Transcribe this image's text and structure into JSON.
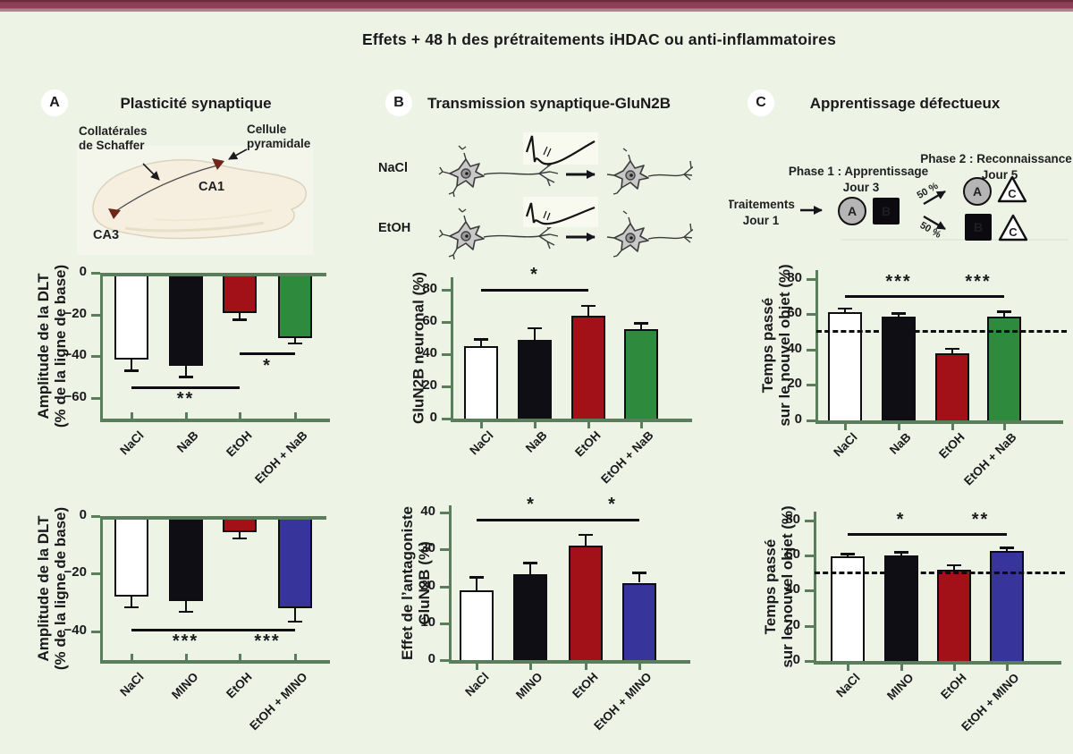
{
  "figure": {
    "title": "Effets + 48 h des prétraitements iHDAC ou anti-inflammatoires",
    "accent_bar_color": "#8d4156",
    "background_color": "#edf3e5",
    "axis_color": "#5a7e5b",
    "ink_color": "#0d0d12"
  },
  "panel_a": {
    "badge": "A",
    "title": "Plasticité synaptique",
    "image": {
      "label_schaffer_1": "Collatérales",
      "label_schaffer_2": "de Schaffer",
      "label_cell_1": "Cellule",
      "label_cell_2": "pyramidale",
      "label_ca1": "CA1",
      "label_ca3": "CA3"
    }
  },
  "panel_b": {
    "badge": "B",
    "title": "Transmission synaptique-GluN2B",
    "row1_label": "NaCl",
    "row2_label": "EtOH"
  },
  "panel_c": {
    "badge": "C",
    "title": "Apprentissage défectueux",
    "diagram": {
      "treatments_1": "Traitements",
      "treatments_2": "Jour 1",
      "phase1_1": "Phase 1 : Apprentissage",
      "phase1_2": "Jour 3",
      "phase2_1": "Phase 2 : Reconnaissance",
      "phase2_2": "Jour 5",
      "pct_top": "50 %",
      "pct_bottom": "50 %",
      "obj_a": "A",
      "obj_b": "B",
      "obj_c": "C"
    }
  },
  "chart_data": [
    {
      "id": "a_top",
      "type": "bar",
      "direction": "down",
      "ylabel": [
        "Amplitude de la DLT",
        "(% de la ligne de base)"
      ],
      "categories": [
        "NaCl",
        "NaB",
        "EtOH",
        "EtOH + NaB"
      ],
      "values": [
        -40,
        -43,
        -18,
        -30
      ],
      "errors": [
        6,
        6,
        3.5,
        3
      ],
      "colors": [
        "#ffffff",
        "#0e0e14",
        "#a31118",
        "#2e8b3e"
      ],
      "ylim": [
        0,
        -70
      ],
      "yticks": [
        0,
        -20,
        -40,
        -60
      ],
      "significance": [
        {
          "from": 0,
          "to": 2,
          "y": -55,
          "label": "**"
        },
        {
          "from": 2,
          "to": 3,
          "y": -39,
          "label": "*"
        }
      ]
    },
    {
      "id": "a_bottom",
      "type": "bar",
      "direction": "down",
      "ylabel": [
        "Amplitude de la DLT",
        "(% de la ligne de base)"
      ],
      "categories": [
        "NaCl",
        "MINO",
        "EtOH",
        "EtOH + MINO"
      ],
      "values": [
        -27,
        -28.5,
        -4.5,
        -31
      ],
      "errors": [
        4,
        4,
        2.5,
        5
      ],
      "colors": [
        "#ffffff",
        "#0e0e14",
        "#a31118",
        "#37349b"
      ],
      "ylim": [
        0,
        -50
      ],
      "yticks": [
        0,
        -20,
        -40
      ],
      "significance": [
        {
          "from": 0,
          "to": 2,
          "y": -39.5,
          "label": "***"
        },
        {
          "from": 2,
          "to": 3,
          "y": -39.5,
          "label": "***"
        }
      ]
    },
    {
      "id": "b_top",
      "type": "bar",
      "direction": "up",
      "ylabel": [
        "GluN2B neuronal (%)"
      ],
      "categories": [
        "NaCl",
        "NaB",
        "EtOH",
        "EtOH + NaB"
      ],
      "values": [
        45,
        49,
        64,
        55.5
      ],
      "errors": [
        5,
        8,
        7,
        4.5
      ],
      "colors": [
        "#ffffff",
        "#0e0e14",
        "#a31118",
        "#2e8b3e"
      ],
      "ylim": [
        0,
        88
      ],
      "yticks": [
        0,
        20,
        40,
        60,
        80
      ],
      "significance": [
        {
          "from": 0,
          "to": 2,
          "y": 80,
          "label": "*"
        }
      ]
    },
    {
      "id": "b_bottom",
      "type": "bar",
      "direction": "up",
      "ylabel": [
        "Effet de l’antagoniste",
        "GluN2B (%)"
      ],
      "categories": [
        "NaCl",
        "MINO",
        "EtOH",
        "EtOH + MINO"
      ],
      "values": [
        19,
        23.3,
        31,
        21
      ],
      "errors": [
        3.8,
        3.4,
        3.3,
        3
      ],
      "colors": [
        "#ffffff",
        "#0e0e14",
        "#a31118",
        "#37349b"
      ],
      "ylim": [
        0,
        42
      ],
      "yticks": [
        0,
        10,
        20,
        30,
        40
      ],
      "significance": [
        {
          "from": 0,
          "to": 2,
          "y": 38,
          "label": "*"
        },
        {
          "from": 2,
          "to": 3,
          "y": 38,
          "label": "*"
        }
      ]
    },
    {
      "id": "c_top",
      "type": "bar",
      "direction": "up",
      "ylabel": [
        "Temps passé",
        "sur le nouvel objet (%)"
      ],
      "categories": [
        "NaCl",
        "NaB",
        "EtOH",
        "EtOH + NaB"
      ],
      "values": [
        61,
        58.5,
        38,
        58.5
      ],
      "errors": [
        3,
        2.5,
        3,
        3.5
      ],
      "colors": [
        "#ffffff",
        "#0e0e14",
        "#a31118",
        "#2e8b3e"
      ],
      "ylim": [
        0,
        85
      ],
      "yticks": [
        0,
        20,
        40,
        60,
        80
      ],
      "dashed_line": 50,
      "significance": [
        {
          "from": 0,
          "to": 2,
          "y": 70,
          "label": "***"
        },
        {
          "from": 2,
          "to": 3,
          "y": 70,
          "label": "***"
        }
      ]
    },
    {
      "id": "c_bottom",
      "type": "bar",
      "direction": "up",
      "ylabel": [
        "Temps passé",
        "sur le nouvel objet (%)"
      ],
      "categories": [
        "NaCl",
        "MINO",
        "EtOH",
        "EtOH + MINO"
      ],
      "values": [
        59.5,
        60,
        52,
        62.5
      ],
      "errors": [
        2,
        2.5,
        3,
        2.5
      ],
      "colors": [
        "#ffffff",
        "#0e0e14",
        "#a31118",
        "#37349b"
      ],
      "ylim": [
        0,
        85
      ],
      "yticks": [
        0,
        20,
        40,
        60,
        80
      ],
      "dashed_line": 50,
      "significance": [
        {
          "from": 0,
          "to": 2,
          "y": 72,
          "label": "*"
        },
        {
          "from": 2,
          "to": 3,
          "y": 72,
          "label": "**"
        }
      ]
    }
  ]
}
